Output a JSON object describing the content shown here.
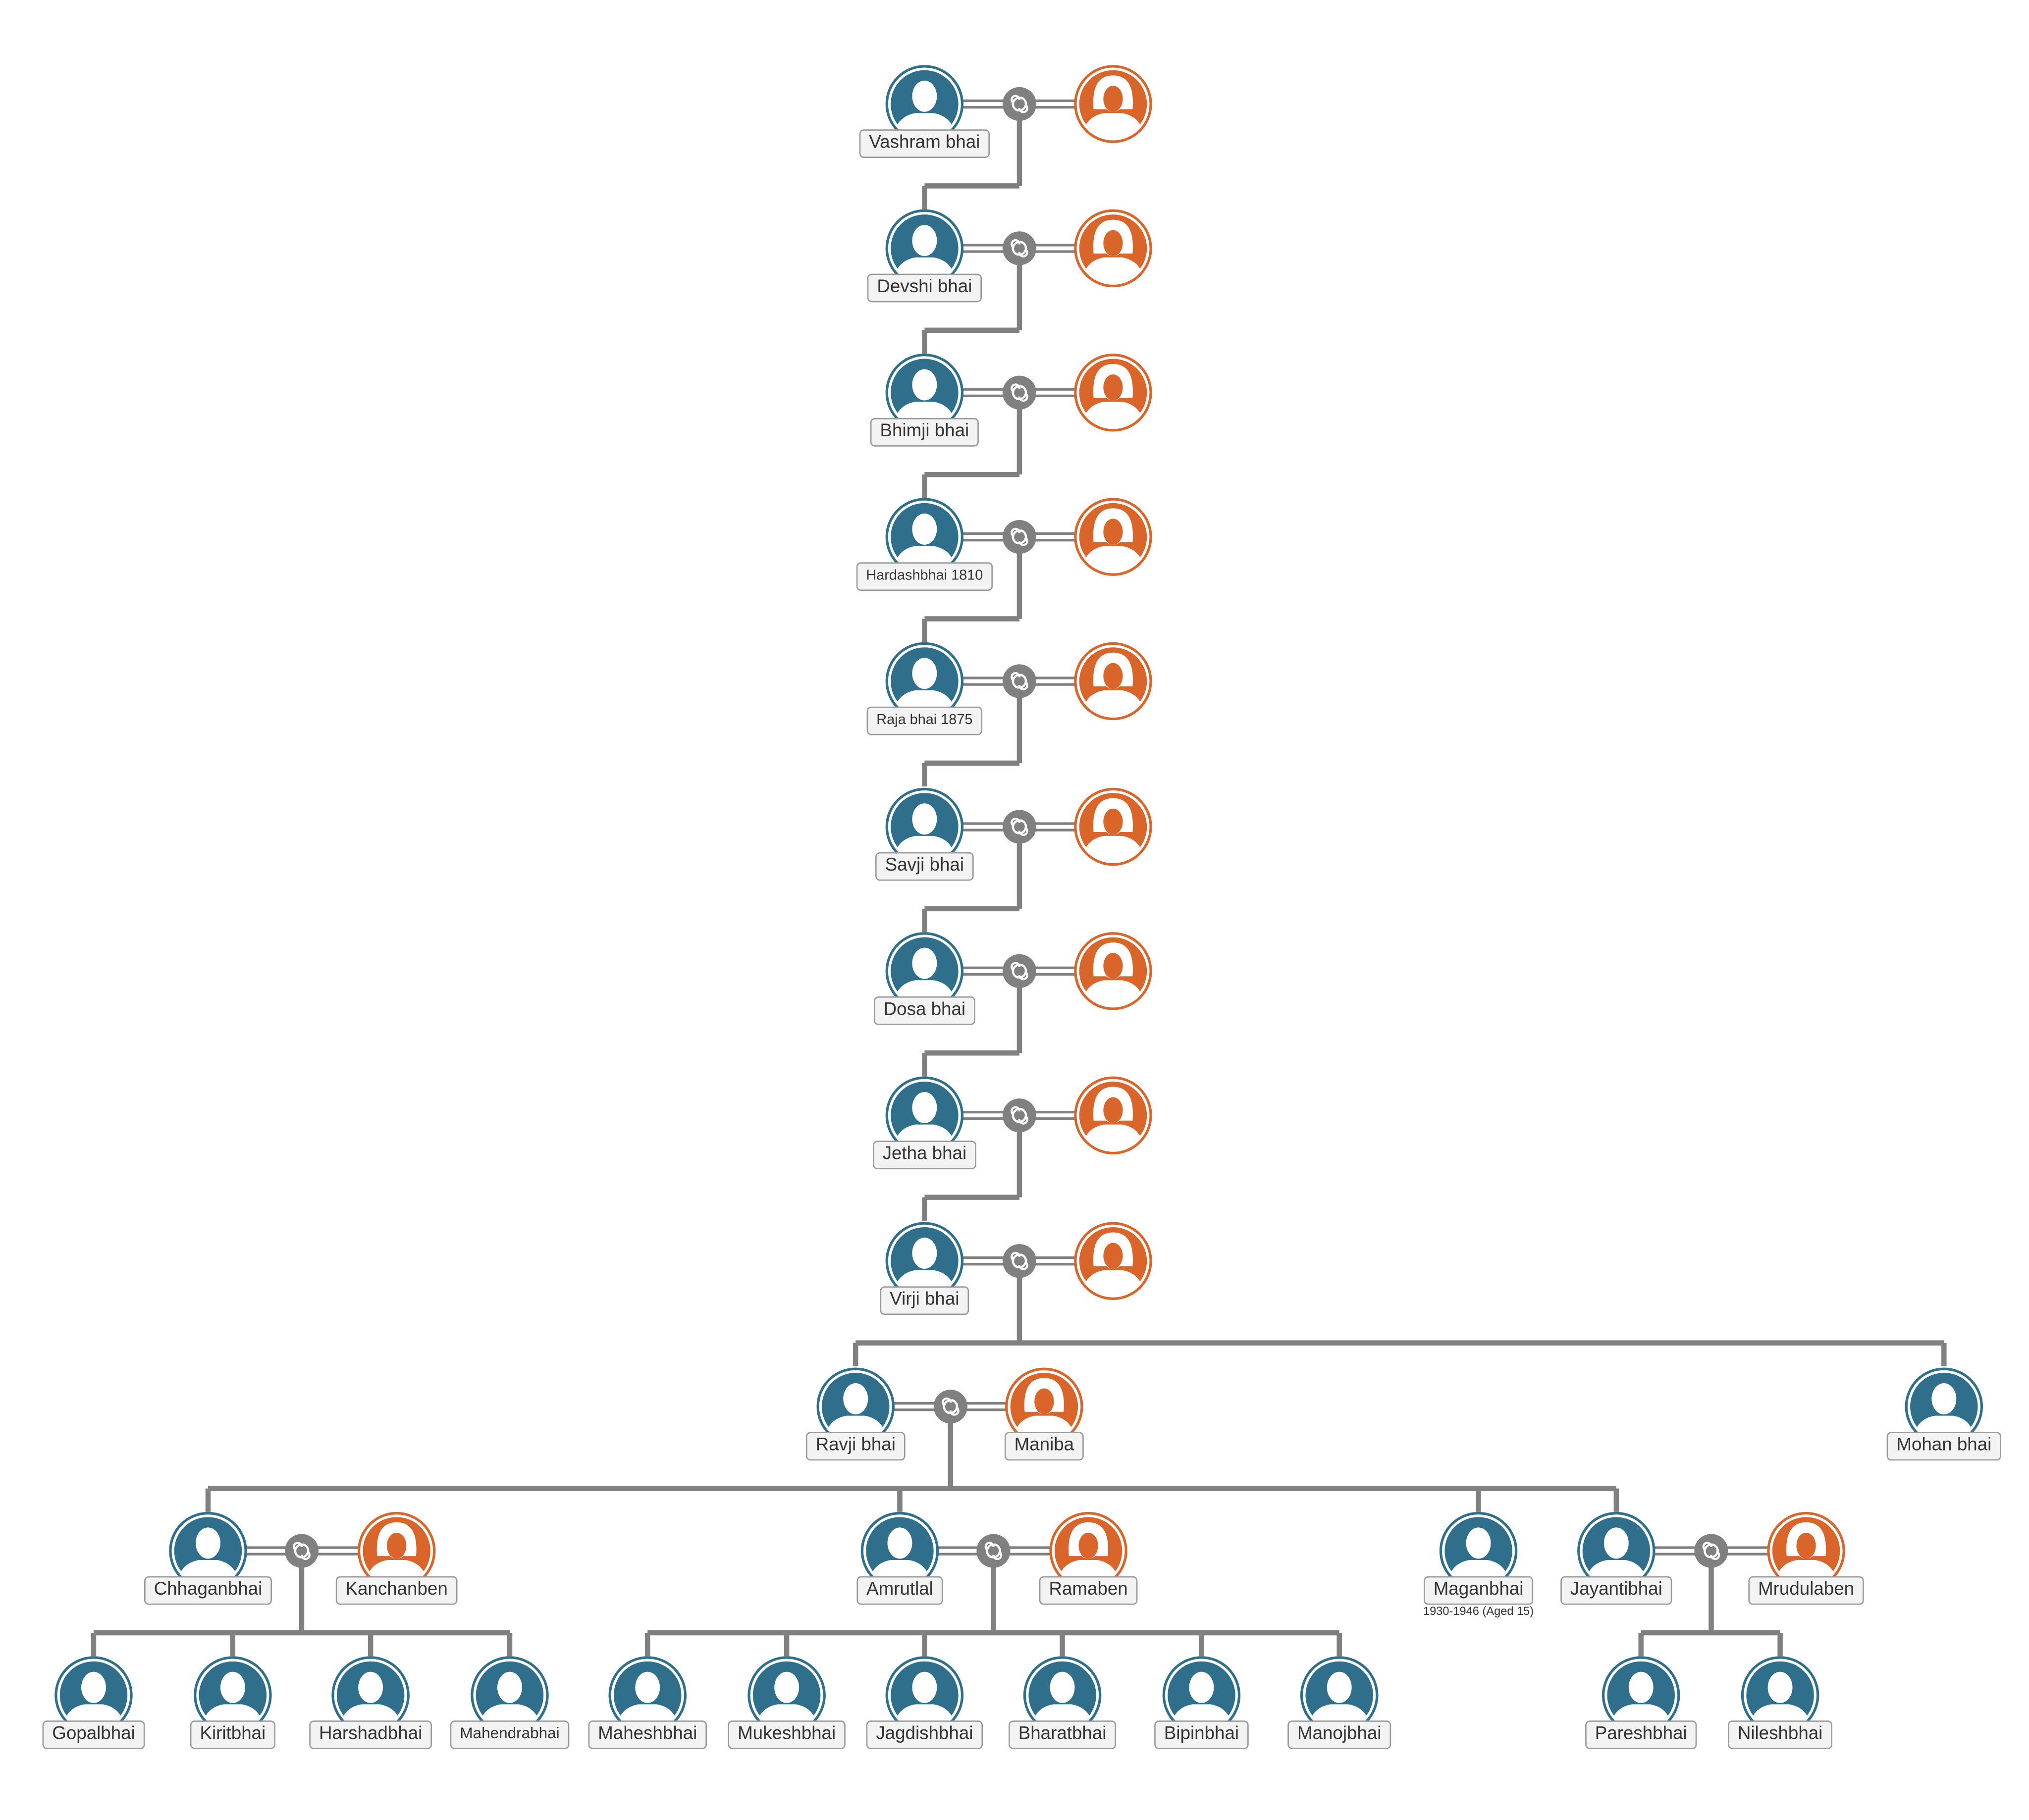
{
  "people": [
    {
      "label": "Vashram bhai"
    },
    {
      "label": "Devshi bhai"
    },
    {
      "label": "Bhimji bhai"
    },
    {
      "label": "Hardashbhai 1810"
    },
    {
      "label": "Raja bhai 1875"
    },
    {
      "label": "Savji bhai"
    },
    {
      "label": "Dosa bhai"
    },
    {
      "label": "Jetha bhai"
    },
    {
      "label": "Virji bhai"
    },
    {
      "label": "Ravji bhai"
    },
    {
      "label": "Maniba"
    },
    {
      "label": "Mohan bhai"
    },
    {
      "label": "Chhaganbhai"
    },
    {
      "label": "Kanchanben"
    },
    {
      "label": "Amrutlal"
    },
    {
      "label": "Ramaben"
    },
    {
      "label": "Maganbhai",
      "note": "1930-1946 (Aged 15)"
    },
    {
      "label": "Jayantibhai"
    },
    {
      "label": "Mrudulaben"
    },
    {
      "label": "Gopalbhai"
    },
    {
      "label": "Kiritbhai"
    },
    {
      "label": "Harshadbhai"
    },
    {
      "label": "Mahendrabhai"
    },
    {
      "label": "Maheshbhai"
    },
    {
      "label": "Mukeshbhai"
    },
    {
      "label": "Jagdishbhai"
    },
    {
      "label": "Bharatbhai"
    },
    {
      "label": "Bipinbhai"
    },
    {
      "label": "Manojbhai"
    },
    {
      "label": "Pareshbhai"
    },
    {
      "label": "Nileshbhai"
    }
  ]
}
